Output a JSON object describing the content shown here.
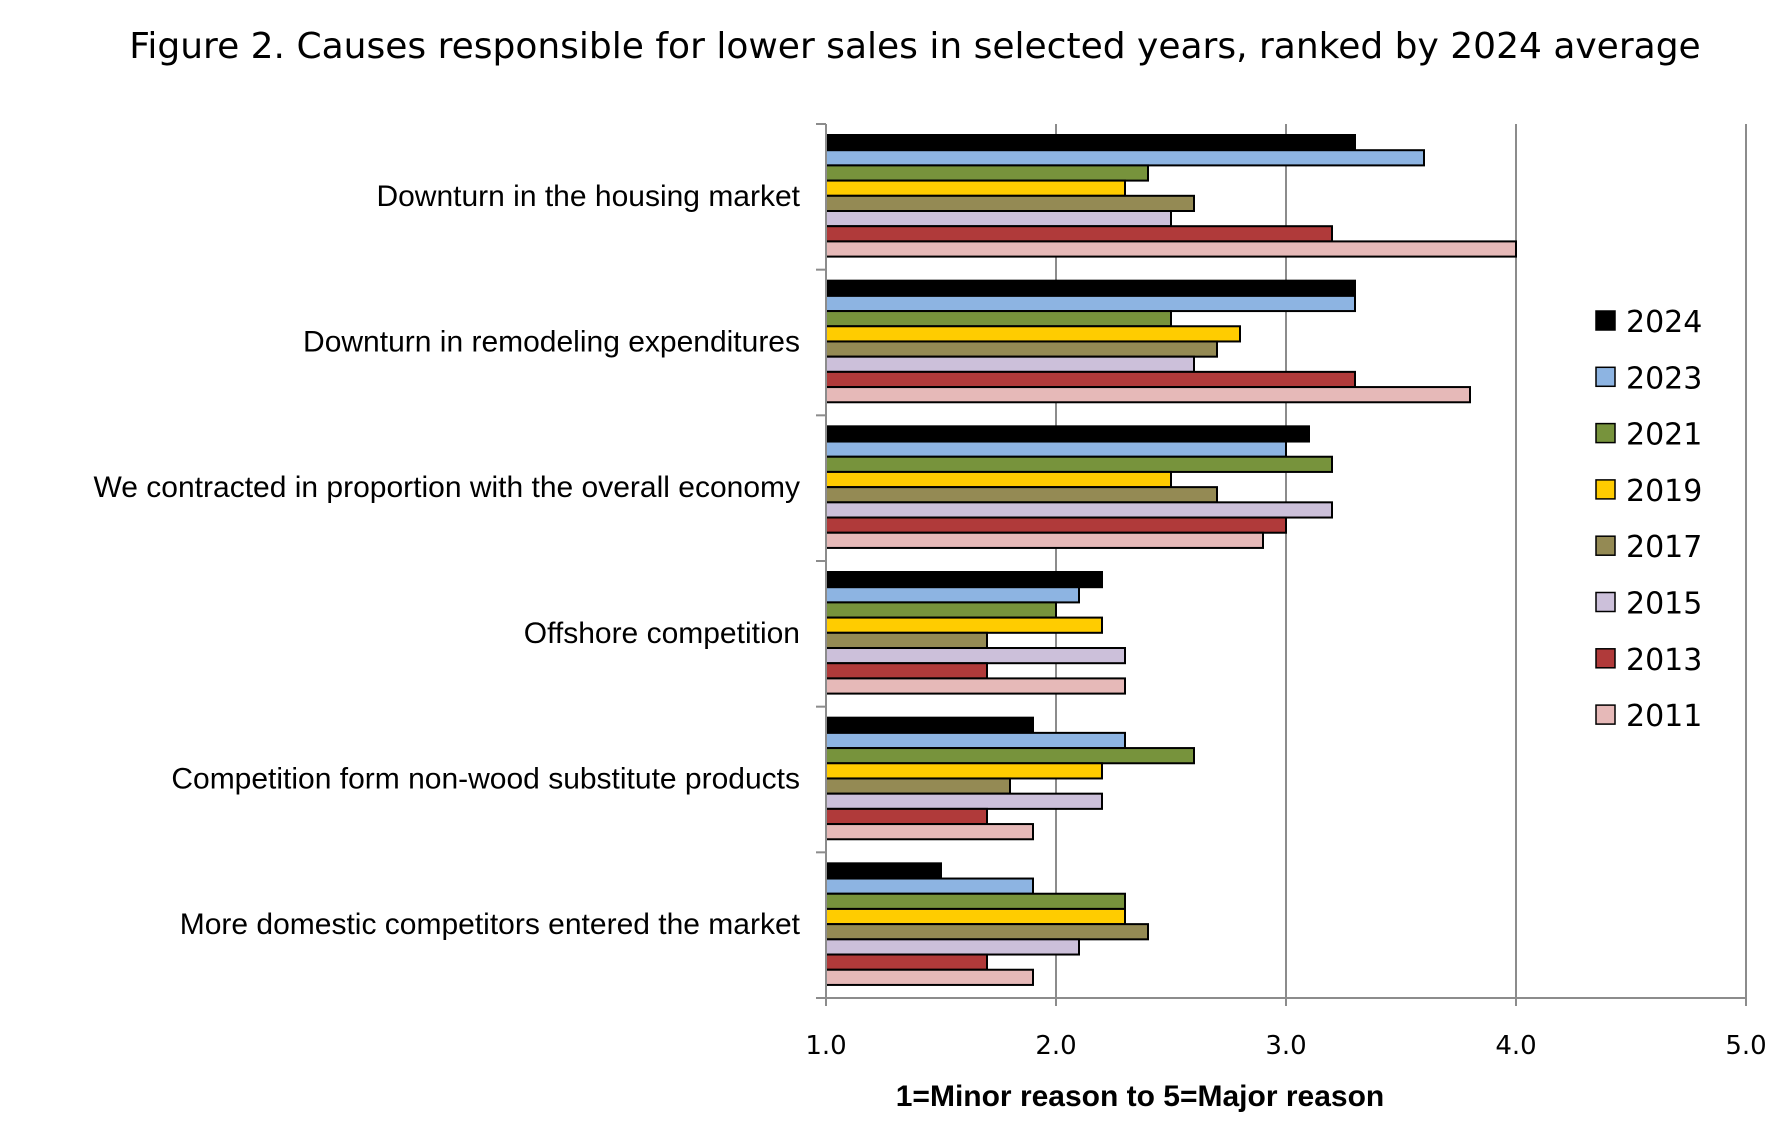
{
  "chart_data": {
    "type": "bar",
    "orientation": "horizontal",
    "title": "Figure 2. Causes responsible for lower sales in selected years, ranked by 2024 average",
    "xlabel": "1=Minor reason to 5=Major reason",
    "ylabel": "",
    "xlim": [
      1.0,
      5.0
    ],
    "x_ticks": [
      "1.0",
      "2.0",
      "3.0",
      "4.0",
      "5.0"
    ],
    "x_tick_values": [
      1,
      2,
      3,
      4,
      5
    ],
    "grid": true,
    "legend_position": "right",
    "categories": [
      "Downturn in the housing market",
      "Downturn in remodeling expenditures",
      "We contracted in proportion with the overall economy",
      "Offshore competition",
      "Competition form non-wood substitute products",
      "More domestic competitors entered the market"
    ],
    "series": [
      {
        "name": "2024",
        "color": "#000000",
        "values": [
          3.3,
          3.3,
          3.1,
          2.2,
          1.9,
          1.5
        ]
      },
      {
        "name": "2023",
        "color": "#8db4e2",
        "values": [
          3.6,
          3.3,
          3.0,
          2.1,
          2.3,
          1.9
        ]
      },
      {
        "name": "2021",
        "color": "#77933c",
        "values": [
          2.4,
          2.5,
          3.2,
          2.0,
          2.6,
          2.3
        ]
      },
      {
        "name": "2019",
        "color": "#ffcc00",
        "values": [
          2.3,
          2.8,
          2.5,
          2.2,
          2.2,
          2.3
        ]
      },
      {
        "name": "2017",
        "color": "#948a54",
        "values": [
          2.6,
          2.7,
          2.7,
          1.7,
          1.8,
          2.4
        ]
      },
      {
        "name": "2015",
        "color": "#ccc0da",
        "values": [
          2.5,
          2.6,
          3.2,
          2.3,
          2.2,
          2.1
        ]
      },
      {
        "name": "2013",
        "color": "#b03a3a",
        "values": [
          3.2,
          3.3,
          3.0,
          1.7,
          1.7,
          1.7
        ]
      },
      {
        "name": "2011",
        "color": "#e6b9b8",
        "values": [
          4.0,
          3.8,
          2.9,
          2.3,
          1.9,
          1.9
        ]
      }
    ]
  }
}
